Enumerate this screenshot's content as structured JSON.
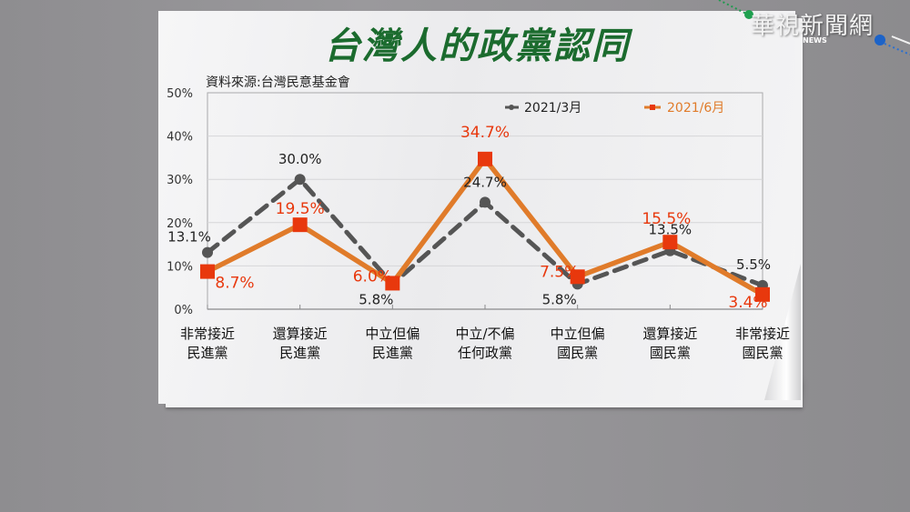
{
  "watermark": {
    "logo_text": "華視新聞網",
    "logo_sub": "NEWS"
  },
  "source_label": "資料來源:台灣民意基金會",
  "colors": {
    "title": "#1b6b2e",
    "series_mar": "#555555",
    "series_jun": "#e07b2a",
    "marker_jun": "#e8380d",
    "label_jun": "#e8380d"
  },
  "chart_data": {
    "type": "line",
    "title": "台灣人的政黨認同",
    "xlabel": "",
    "ylabel": "",
    "ylim": [
      0,
      50
    ],
    "yticks": [
      "0%",
      "10%",
      "20%",
      "30%",
      "40%",
      "50%"
    ],
    "grid": true,
    "legend_position": "top-right",
    "categories": [
      "非常接近民進黨",
      "還算接近民進黨",
      "中立但偏民進黨",
      "中立/不偏任何政黨",
      "中立但偏國民黨",
      "還算接近國民黨",
      "非常接近國民黨"
    ],
    "category_lines": [
      [
        "非常接近",
        "民進黨"
      ],
      [
        "還算接近",
        "民進黨"
      ],
      [
        "中立但偏",
        "民進黨"
      ],
      [
        "中立/不偏",
        "任何政黨"
      ],
      [
        "中立但偏",
        "國民黨"
      ],
      [
        "還算接近",
        "國民黨"
      ],
      [
        "非常接近",
        "國民黨"
      ]
    ],
    "series": [
      {
        "name": "2021/3月",
        "style": "dashed-gray-circle",
        "values": [
          13.1,
          30.0,
          5.8,
          24.7,
          5.8,
          13.5,
          5.5
        ],
        "labels": [
          "13.1%",
          "30.0%",
          "5.8%",
          "24.7%",
          "5.8%",
          "13.5%",
          "5.5%"
        ]
      },
      {
        "name": "2021/6月",
        "style": "solid-orange-square",
        "values": [
          8.7,
          19.5,
          6.0,
          34.7,
          7.5,
          15.5,
          3.4
        ],
        "labels": [
          "8.7%",
          "19.5%",
          "6.0%",
          "34.7%",
          "7.5%",
          "15.5%",
          "3.4%"
        ]
      }
    ]
  }
}
